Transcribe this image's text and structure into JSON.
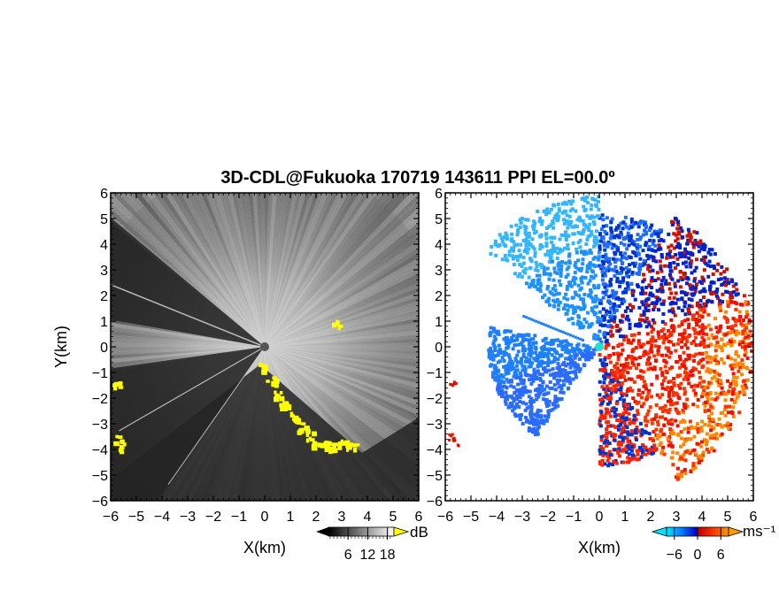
{
  "chart_data": {
    "type": "heatmap",
    "title": "3D-CDL@Fukuoka 170719 143611 PPI EL=00.0º",
    "panels": [
      {
        "name": "reflectivity",
        "xlabel": "X(km)",
        "ylabel": "Y(km)",
        "xlim": [
          -6,
          6
        ],
        "ylim": [
          -6,
          6
        ],
        "xticks": [
          "−6",
          "−5",
          "−4",
          "−3",
          "−2",
          "−1",
          "0",
          "1",
          "2",
          "3",
          "4",
          "5",
          "6"
        ],
        "yticks": [
          "6",
          "5",
          "4",
          "3",
          "2",
          "1",
          "0",
          "−1",
          "−2",
          "−3",
          "−4",
          "−5",
          "−6"
        ],
        "colorbar": {
          "unit": "dB",
          "ticks": [
            "6",
            "12",
            "18"
          ],
          "tick_values": [
            6,
            12,
            18
          ],
          "range": [
            0,
            20
          ],
          "colors": [
            "#000000",
            "#ffffff"
          ],
          "over_color": "#ffff00"
        },
        "shadow_sectors_deg": [
          [
            140,
            170
          ],
          [
            188,
            235
          ]
        ],
        "yellow_features": "cloud/ground echo along lower-right ridge and at left edge"
      },
      {
        "name": "doppler-velocity",
        "xlabel": "X(km)",
        "ylabel": "",
        "xlim": [
          -6,
          6
        ],
        "ylim": [
          -6,
          6
        ],
        "xticks": [
          "−6",
          "−5",
          "−4",
          "−3",
          "−2",
          "−1",
          "0",
          "1",
          "2",
          "3",
          "4",
          "5",
          "6"
        ],
        "yticks": [
          "6",
          "5",
          "4",
          "3",
          "2",
          "1",
          "0",
          "−1",
          "−2",
          "−3",
          "−4",
          "−5",
          "−6"
        ],
        "colorbar": {
          "unit": "ms⁻¹",
          "ticks": [
            "−6",
            "0",
            "6"
          ],
          "tick_values": [
            -6,
            0,
            6
          ],
          "range": [
            -8,
            8
          ],
          "colors": [
            "#00e5ff",
            "#0066ff",
            "#0000cc",
            "#cc0000",
            "#ff3300",
            "#ff9900"
          ]
        }
      }
    ]
  }
}
